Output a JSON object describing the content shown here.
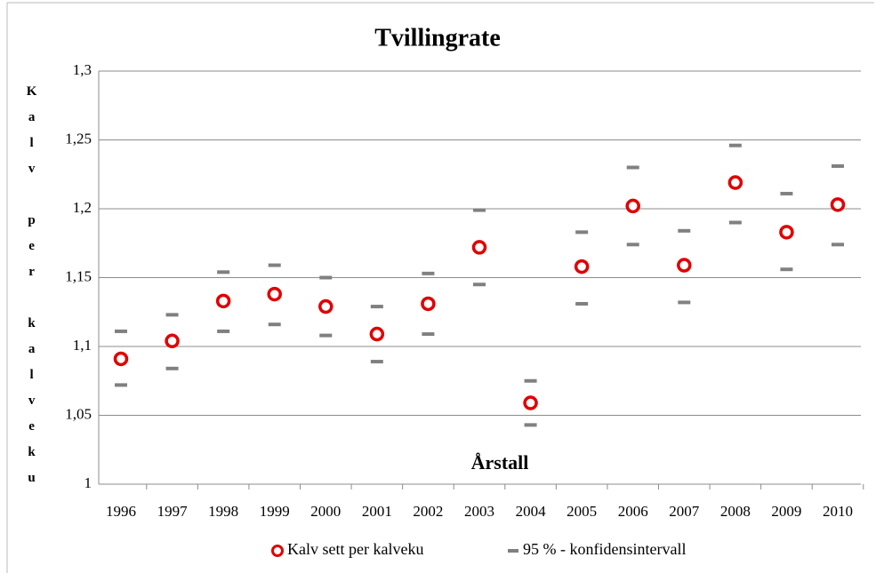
{
  "chart_data": {
    "type": "scatter-ci",
    "title": "Tvillingrate",
    "x_label": "Årstall",
    "y_label": "Kalv per kalveku",
    "categories": [
      "1996",
      "1997",
      "1998",
      "1999",
      "2000",
      "2001",
      "2002",
      "2003",
      "2004",
      "2005",
      "2006",
      "2007",
      "2008",
      "2009",
      "2010"
    ],
    "series": [
      {
        "name": "Kalv sett per kalveku",
        "color": "#e00000",
        "marker": "circle",
        "values": [
          1.091,
          1.104,
          1.133,
          1.138,
          1.129,
          1.109,
          1.131,
          1.172,
          1.059,
          1.158,
          1.202,
          1.159,
          1.219,
          1.183,
          1.203
        ]
      },
      {
        "name": "95 % - konfidensintervall",
        "color": "#808080",
        "marker": "dash",
        "upper": [
          1.111,
          1.123,
          1.154,
          1.159,
          1.15,
          1.129,
          1.153,
          1.199,
          1.075,
          1.183,
          1.23,
          1.184,
          1.246,
          1.211,
          1.231
        ],
        "lower": [
          1.072,
          1.084,
          1.111,
          1.116,
          1.108,
          1.089,
          1.109,
          1.145,
          1.043,
          1.131,
          1.174,
          1.132,
          1.19,
          1.156,
          1.174
        ]
      }
    ],
    "ylim": [
      1,
      1.3
    ],
    "yticks": [
      1,
      {
        "value": 1.05,
        "label": "1,05"
      },
      {
        "value": 1.1,
        "label": "1,1"
      },
      {
        "value": 1.15,
        "label": "1,15"
      },
      {
        "value": 1.2,
        "label": "1,2"
      },
      {
        "value": 1.25,
        "label": "1,25"
      },
      {
        "value": 1.3,
        "label": "1,3"
      }
    ],
    "grid": true,
    "legend": "bottom"
  }
}
